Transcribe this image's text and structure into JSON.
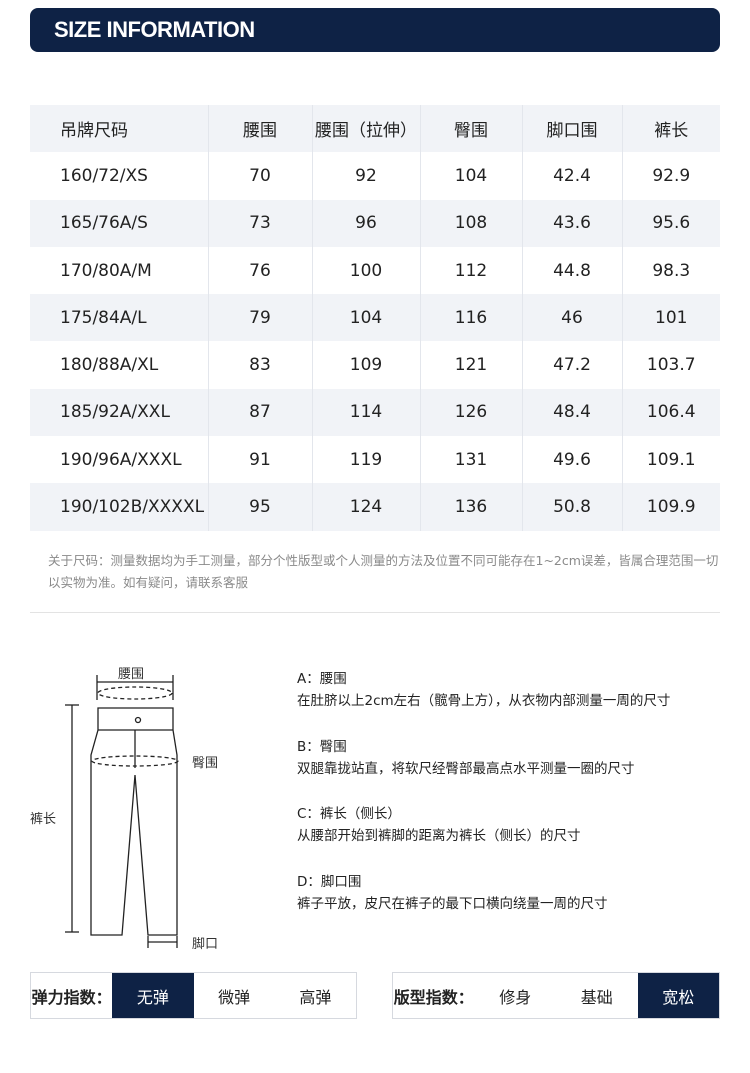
{
  "header": {
    "title": "SIZE INFORMATION"
  },
  "table": {
    "columns": [
      "吊牌尺码",
      "腰围",
      "腰围（拉伸）",
      "臀围",
      "脚口围",
      "裤长"
    ],
    "rows": [
      [
        "160/72/XS",
        "70",
        "92",
        "104",
        "42.4",
        "92.9"
      ],
      [
        "165/76A/S",
        "73",
        "96",
        "108",
        "43.6",
        "95.6"
      ],
      [
        "170/80A/M",
        "76",
        "100",
        "112",
        "44.8",
        "98.3"
      ],
      [
        "175/84A/L",
        "79",
        "104",
        "116",
        "46",
        "101"
      ],
      [
        "180/88A/XL",
        "83",
        "109",
        "121",
        "47.2",
        "103.7"
      ],
      [
        "185/92A/XXL",
        "87",
        "114",
        "126",
        "48.4",
        "106.4"
      ],
      [
        "190/96A/XXXL",
        "91",
        "119",
        "131",
        "49.6",
        "109.1"
      ],
      [
        "190/102B/XXXXL",
        "95",
        "124",
        "136",
        "50.8",
        "109.9"
      ]
    ]
  },
  "note": "关于尺码：测量数据均为手工测量，部分个性版型或个人测量的方法及位置不同可能存在1~2cm误差，皆属合理范围一切以实物为准。如有疑问，请联系客服",
  "diagram": {
    "waist": "腰围",
    "hip": "臀围",
    "length": "裤长",
    "hem": "脚口"
  },
  "measures": [
    {
      "title": "A：腰围",
      "text": "在肚脐以上2cm左右（髋骨上方），从衣物内部测量一周的尺寸"
    },
    {
      "title": "B：臀围",
      "text": "双腿靠拢站直，将软尺经臀部最高点水平测量一圈的尺寸"
    },
    {
      "title": "C：裤长（侧长）",
      "text": "从腰部开始到裤脚的距离为裤长（侧长）的尺寸"
    },
    {
      "title": "D：脚口围",
      "text": "裤子平放，皮尺在裤子的最下口横向绕量一周的尺寸"
    }
  ],
  "elasticity": {
    "label": "弹力指数：",
    "options": [
      "无弹",
      "微弹",
      "高弹"
    ],
    "selected": "无弹"
  },
  "fit": {
    "label": "版型指数：",
    "options": [
      "修身",
      "基础",
      "宽松"
    ],
    "selected": "宽松"
  },
  "colors": {
    "accent": "#0e2245"
  }
}
